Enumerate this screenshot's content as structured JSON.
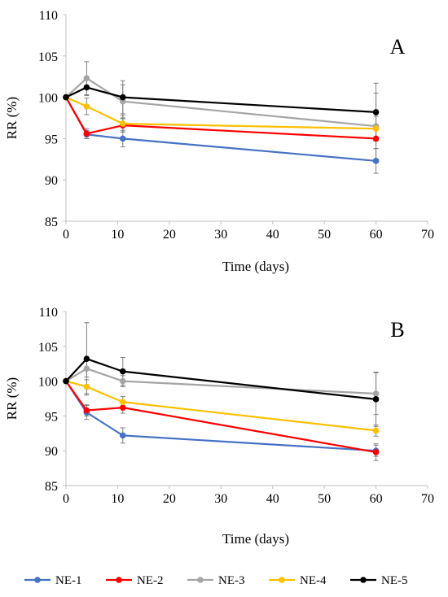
{
  "figure": {
    "legend_position": "bottom",
    "colors": {
      "NE-1": "#4472c4",
      "NE-2": "#ff0000",
      "NE-3": "#a5a5a5",
      "NE-4": "#ffc000",
      "NE-5": "#000000"
    },
    "legend": [
      "NE-1",
      "NE-2",
      "NE-3",
      "NE-4",
      "NE-5"
    ]
  },
  "chart_data": [
    {
      "type": "line",
      "panel_label": "A",
      "xlabel": "Time (days)",
      "ylabel": "RR (%)",
      "xlim": [
        0,
        70
      ],
      "ylim": [
        85,
        110
      ],
      "xticks": [
        0,
        10,
        20,
        30,
        40,
        50,
        60,
        70
      ],
      "yticks": [
        85,
        90,
        95,
        100,
        105,
        110
      ],
      "grid": false,
      "x": [
        0,
        4,
        11,
        60
      ],
      "series": [
        {
          "name": "NE-1",
          "values": [
            100,
            95.5,
            95.0,
            92.3
          ],
          "errors": [
            0,
            0.5,
            1.0,
            1.5
          ]
        },
        {
          "name": "NE-2",
          "values": [
            100,
            95.6,
            96.6,
            95.0
          ],
          "errors": [
            0,
            0.6,
            0.8,
            1.2
          ]
        },
        {
          "name": "NE-3",
          "values": [
            100,
            102.3,
            99.5,
            96.5
          ],
          "errors": [
            0,
            2.0,
            2.0,
            4.0
          ]
        },
        {
          "name": "NE-4",
          "values": [
            100,
            98.9,
            96.8,
            96.2
          ],
          "errors": [
            0,
            1.0,
            1.0,
            1.5
          ]
        },
        {
          "name": "NE-5",
          "values": [
            100,
            101.2,
            100.0,
            98.2
          ],
          "errors": [
            0,
            1.0,
            2.0,
            3.5
          ]
        }
      ]
    },
    {
      "type": "line",
      "panel_label": "B",
      "xlabel": "Time (days)",
      "ylabel": "RR (%)",
      "xlim": [
        0,
        70
      ],
      "ylim": [
        85,
        110
      ],
      "xticks": [
        0,
        10,
        20,
        30,
        40,
        50,
        60,
        70
      ],
      "yticks": [
        85,
        90,
        95,
        100,
        105,
        110
      ],
      "grid": false,
      "x": [
        0,
        4,
        11,
        60
      ],
      "series": [
        {
          "name": "NE-1",
          "values": [
            100,
            95.5,
            92.2,
            90.0
          ],
          "errors": [
            0,
            1.0,
            1.1,
            0.8
          ]
        },
        {
          "name": "NE-2",
          "values": [
            100,
            95.8,
            96.2,
            89.8
          ],
          "errors": [
            0,
            0.8,
            0.8,
            1.2
          ]
        },
        {
          "name": "NE-3",
          "values": [
            100,
            101.8,
            100.0,
            98.2
          ],
          "errors": [
            0,
            1.2,
            0.8,
            3.0
          ]
        },
        {
          "name": "NE-4",
          "values": [
            100,
            99.2,
            97.0,
            92.9
          ],
          "errors": [
            0,
            1.0,
            0.8,
            0.8
          ]
        },
        {
          "name": "NE-5",
          "values": [
            100,
            103.2,
            101.4,
            97.4
          ],
          "errors": [
            0,
            5.2,
            2.0,
            3.9
          ]
        }
      ]
    }
  ]
}
